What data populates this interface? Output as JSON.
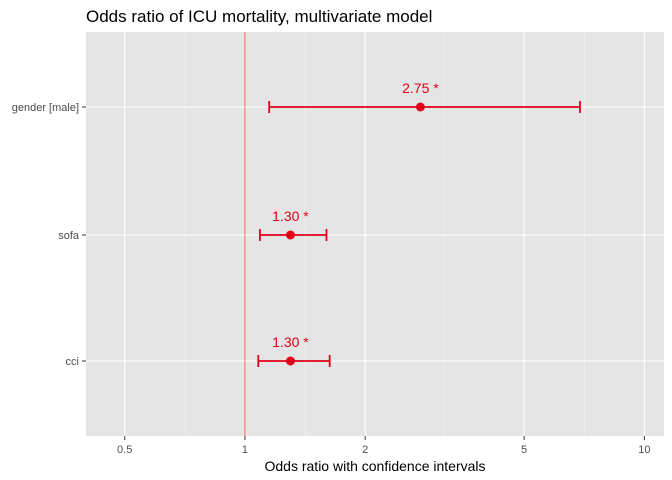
{
  "chart_data": {
    "type": "scatter",
    "title": "Odds ratio of ICU mortality, multivariate model",
    "xlabel": "Odds ratio with confidence intervals",
    "ylabel": "",
    "x_scale": "log",
    "xlim": [
      0.4,
      11.2
    ],
    "x_ticks": [
      0.5,
      1,
      2,
      5,
      10
    ],
    "x_tick_labels": [
      "0.5",
      "1",
      "2",
      "5",
      "10"
    ],
    "reference_line": 1,
    "grid": true,
    "color": "#e3001b",
    "categories": [
      "gender [male]",
      "sofa",
      "cci"
    ],
    "estimates": [
      2.75,
      1.3,
      1.3
    ],
    "ci_low": [
      1.15,
      1.09,
      1.08
    ],
    "ci_high": [
      6.9,
      1.6,
      1.63
    ],
    "labels": [
      "2.75 *",
      "1.30 *",
      "1.30 *"
    ]
  }
}
